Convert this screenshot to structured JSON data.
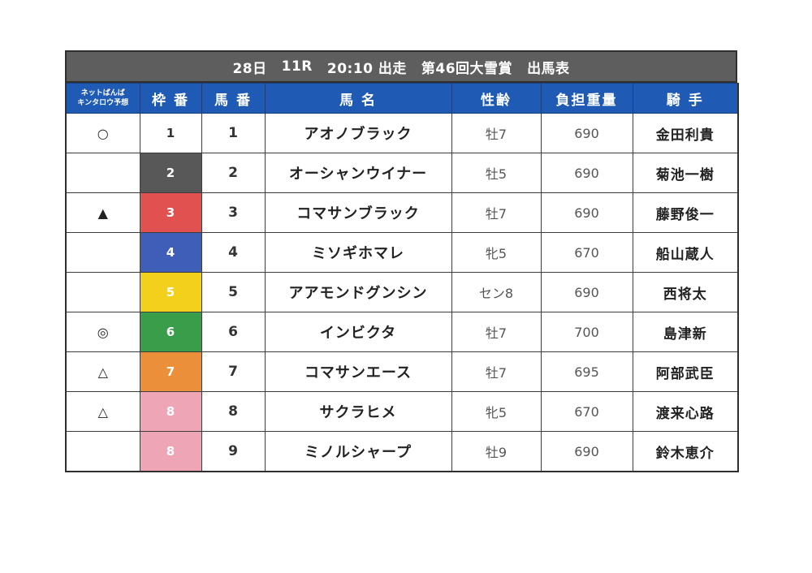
{
  "title": {
    "day": "28日",
    "race": "11R",
    "time": "20:10 出走",
    "name": "第46回大雪賞",
    "suffix": "出馬表"
  },
  "headers": {
    "prediction_line1": "ネットばんば",
    "prediction_line2": "キンタロウ予想",
    "waku": "枠 番",
    "umaban": "馬 番",
    "horse": "馬 名",
    "sex_age": "性齢",
    "weight": "負担重量",
    "jockey": "騎 手"
  },
  "colors": {
    "header_bg": "#1f5bb5",
    "title_bg": "#5e5e5e",
    "waku_1": "#ffffff",
    "waku_2": "#585858",
    "waku_3": "#e0514f",
    "waku_4": "#3f5eb8",
    "waku_5": "#f2d01b",
    "waku_6": "#3a9d49",
    "waku_7": "#ec8f3a",
    "waku_8": "#eea5b6"
  },
  "rows": [
    {
      "mark": "○",
      "waku": "1",
      "umaban": "1",
      "horse": "アオノブラック",
      "sex_age": "牡7",
      "weight": "690",
      "jockey": "金田利貴"
    },
    {
      "mark": "",
      "waku": "2",
      "umaban": "2",
      "horse": "オーシャンウイナー",
      "sex_age": "牡5",
      "weight": "690",
      "jockey": "菊池一樹"
    },
    {
      "mark": "▲",
      "waku": "3",
      "umaban": "3",
      "horse": "コマサンブラック",
      "sex_age": "牡7",
      "weight": "690",
      "jockey": "藤野俊一"
    },
    {
      "mark": "",
      "waku": "4",
      "umaban": "4",
      "horse": "ミソギホマレ",
      "sex_age": "牝5",
      "weight": "670",
      "jockey": "船山蔵人"
    },
    {
      "mark": "",
      "waku": "5",
      "umaban": "5",
      "horse": "アアモンドグンシン",
      "sex_age": "セン8",
      "weight": "690",
      "jockey": "西将太"
    },
    {
      "mark": "◎",
      "waku": "6",
      "umaban": "6",
      "horse": "インビクタ",
      "sex_age": "牡7",
      "weight": "700",
      "jockey": "島津新"
    },
    {
      "mark": "△",
      "waku": "7",
      "umaban": "7",
      "horse": "コマサンエース",
      "sex_age": "牡7",
      "weight": "695",
      "jockey": "阿部武臣"
    },
    {
      "mark": "△",
      "waku": "8",
      "umaban": "8",
      "horse": "サクラヒメ",
      "sex_age": "牝5",
      "weight": "670",
      "jockey": "渡来心路"
    },
    {
      "mark": "",
      "waku": "8",
      "umaban": "9",
      "horse": "ミノルシャープ",
      "sex_age": "牡9",
      "weight": "690",
      "jockey": "鈴木恵介"
    }
  ]
}
